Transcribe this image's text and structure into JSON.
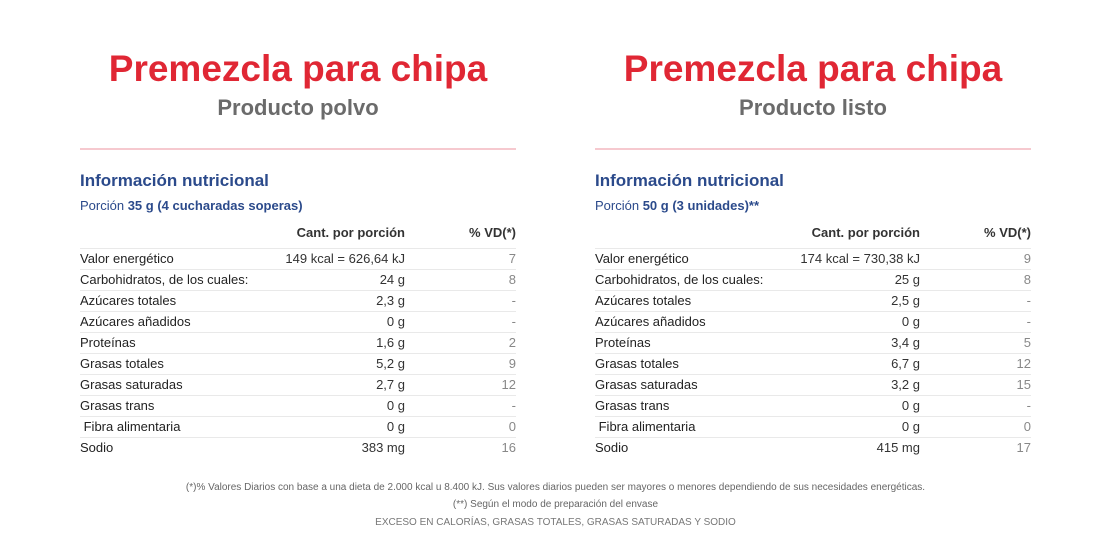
{
  "left": {
    "title": "Premezcla para chipa",
    "subtitle": "Producto polvo",
    "heading": "Información nutricional",
    "portion_prefix": "Porción ",
    "portion_value": "35 g (4 cucharadas soperas)",
    "col_qty": "Cant. por porción",
    "col_vd": "% VD(*)",
    "rows": [
      {
        "name": "Valor energético",
        "qty": "149 kcal = 626,64 kJ",
        "vd": "7"
      },
      {
        "name": "Carbohidratos, de los cuales:",
        "qty": "24 g",
        "vd": "8"
      },
      {
        "name": "Azúcares totales",
        "qty": "2,3 g",
        "vd": "-"
      },
      {
        "name": "Azúcares añadidos",
        "qty": "0 g",
        "vd": "-"
      },
      {
        "name": "Proteínas",
        "qty": "1,6 g",
        "vd": "2"
      },
      {
        "name": "Grasas totales",
        "qty": "5,2 g",
        "vd": "9"
      },
      {
        "name": "Grasas saturadas",
        "qty": "2,7 g",
        "vd": "12"
      },
      {
        "name": "Grasas trans",
        "qty": "0 g",
        "vd": "-"
      },
      {
        "name": " Fibra alimentaria",
        "qty": "0 g",
        "vd": "0"
      },
      {
        "name": "Sodio",
        "qty": "383 mg",
        "vd": "16"
      }
    ]
  },
  "right": {
    "title": "Premezcla para chipa",
    "subtitle": "Producto listo",
    "heading": "Información nutricional",
    "portion_prefix": "Porción ",
    "portion_value": "50 g (3 unidades)**",
    "col_qty": "Cant. por porción",
    "col_vd": "% VD(*)",
    "rows": [
      {
        "name": "Valor energético",
        "qty": "174 kcal = 730,38 kJ",
        "vd": "9"
      },
      {
        "name": "Carbohidratos, de los cuales:",
        "qty": "25 g",
        "vd": "8"
      },
      {
        "name": "Azúcares totales",
        "qty": "2,5 g",
        "vd": "-"
      },
      {
        "name": "Azúcares añadidos",
        "qty": "0 g",
        "vd": "-"
      },
      {
        "name": "Proteínas",
        "qty": "3,4 g",
        "vd": "5"
      },
      {
        "name": "Grasas totales",
        "qty": "6,7 g",
        "vd": "12"
      },
      {
        "name": "Grasas saturadas",
        "qty": "3,2 g",
        "vd": "15"
      },
      {
        "name": "Grasas trans",
        "qty": "0 g",
        "vd": "-"
      },
      {
        "name": " Fibra alimentaria",
        "qty": "0 g",
        "vd": "0"
      },
      {
        "name": "Sodio",
        "qty": "415 mg",
        "vd": "17"
      }
    ]
  },
  "footer": {
    "note1": "(*)% Valores Diarios con base a una dieta de 2.000 kcal u 8.400 kJ. Sus valores diarios pueden ser mayores o menores dependiendo de sus necesidades energéticas.",
    "note2": "(**) Según el modo de preparación del envase",
    "warning": "EXCESO EN CALORÍAS, GRASAS TOTALES, GRASAS SATURADAS Y SODIO"
  },
  "colors": {
    "title": "#e02734",
    "heading": "#2b4a8b",
    "divider": "#f6c9cf"
  }
}
